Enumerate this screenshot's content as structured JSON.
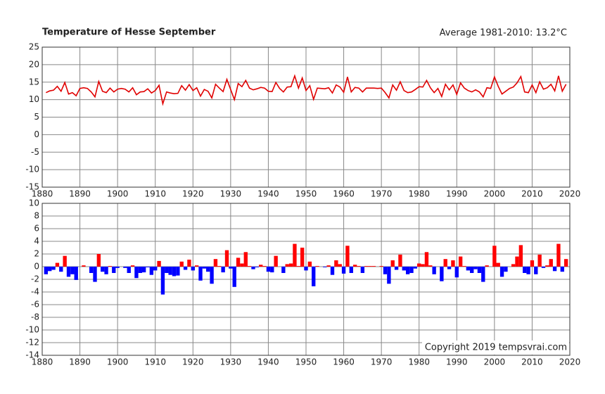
{
  "title": "Temperature of Hesse September",
  "subtitle": "Average 1981-2010: 13.2°C",
  "credit": "Copyright 2019 tempsvrai.com",
  "chart_data": [
    {
      "type": "line",
      "color": "#e00000",
      "grid": true,
      "xlim": [
        1880,
        2020
      ],
      "xticks": [
        1880,
        1890,
        1900,
        1910,
        1920,
        1930,
        1940,
        1950,
        1960,
        1970,
        1980,
        1990,
        2000,
        2010,
        2020
      ],
      "ylim": [
        -15,
        25
      ],
      "yticks": [
        -15,
        -10,
        -5,
        0,
        5,
        10,
        15,
        20,
        25
      ],
      "x": [
        1881,
        1882,
        1883,
        1884,
        1885,
        1886,
        1887,
        1888,
        1889,
        1890,
        1891,
        1892,
        1893,
        1894,
        1895,
        1896,
        1897,
        1898,
        1899,
        1900,
        1901,
        1902,
        1903,
        1904,
        1905,
        1906,
        1907,
        1908,
        1909,
        1910,
        1911,
        1912,
        1913,
        1914,
        1915,
        1916,
        1917,
        1918,
        1919,
        1920,
        1921,
        1922,
        1923,
        1924,
        1925,
        1926,
        1927,
        1928,
        1929,
        1930,
        1931,
        1932,
        1933,
        1934,
        1935,
        1936,
        1937,
        1938,
        1939,
        1940,
        1941,
        1942,
        1943,
        1944,
        1945,
        1946,
        1947,
        1948,
        1949,
        1950,
        1951,
        1952,
        1953,
        1954,
        1955,
        1956,
        1957,
        1958,
        1959,
        1960,
        1961,
        1962,
        1963,
        1964,
        1965,
        1966,
        1967,
        1968,
        1969,
        1970,
        1971,
        1972,
        1973,
        1974,
        1975,
        1976,
        1977,
        1978,
        1979,
        1980,
        1981,
        1982,
        1983,
        1984,
        1985,
        1986,
        1987,
        1988,
        1989,
        1990,
        1991,
        1992,
        1993,
        1994,
        1995,
        1996,
        1997,
        1998,
        1999,
        2000,
        2001,
        2002,
        2003,
        2004,
        2005,
        2006,
        2007,
        2008,
        2009,
        2010,
        2011,
        2012,
        2013,
        2014,
        2015,
        2016,
        2017,
        2018,
        2019
      ],
      "values": [
        12.0,
        12.5,
        12.7,
        13.8,
        12.4,
        14.9,
        11.6,
        12.0,
        11.1,
        13.2,
        13.4,
        13.2,
        12.2,
        10.8,
        15.2,
        12.4,
        12.0,
        13.3,
        12.2,
        13.0,
        13.2,
        13.0,
        12.2,
        13.4,
        11.4,
        12.2,
        12.3,
        13.1,
        11.9,
        12.6,
        14.1,
        8.8,
        12.2,
        11.9,
        11.7,
        11.8,
        14.0,
        12.7,
        14.3,
        12.6,
        13.4,
        11.0,
        12.9,
        12.4,
        10.5,
        14.4,
        13.3,
        12.3,
        15.8,
        12.9,
        10.0,
        14.6,
        13.7,
        15.5,
        13.3,
        12.8,
        13.1,
        13.5,
        13.3,
        12.4,
        12.3,
        14.9,
        13.2,
        12.2,
        13.6,
        13.7,
        16.8,
        13.3,
        16.2,
        12.6,
        14.0,
        10.1,
        13.3,
        13.2,
        13.1,
        13.4,
        11.9,
        14.2,
        13.6,
        12.1,
        16.5,
        12.2,
        13.5,
        13.3,
        12.2,
        13.3,
        13.3,
        13.3,
        13.2,
        13.3,
        12.0,
        10.5,
        14.2,
        12.7,
        15.1,
        12.6,
        12.0,
        12.2,
        12.9,
        13.7,
        13.6,
        15.5,
        13.4,
        12.0,
        13.2,
        10.9,
        14.4,
        12.8,
        14.2,
        11.5,
        14.8,
        13.3,
        12.6,
        12.2,
        12.8,
        12.2,
        10.8,
        13.4,
        13.2,
        16.5,
        13.8,
        11.6,
        12.4,
        13.2,
        13.6,
        14.8,
        16.6,
        12.2,
        12.0,
        14.2,
        12.0,
        15.1,
        13.0,
        13.4,
        14.4,
        12.5,
        16.8,
        12.4,
        14.4
      ]
    },
    {
      "type": "bar",
      "positive_color": "#ff0000",
      "negative_color": "#0000ff",
      "grid": true,
      "xlim": [
        1880,
        2020
      ],
      "xticks": [
        1880,
        1890,
        1900,
        1910,
        1920,
        1930,
        1940,
        1950,
        1960,
        1970,
        1980,
        1990,
        2000,
        2010,
        2020
      ],
      "ylim": [
        -14,
        10
      ],
      "yticks": [
        -14,
        -12,
        -10,
        -8,
        -6,
        -4,
        -2,
        0,
        2,
        4,
        6,
        8,
        10
      ],
      "x": [
        1881,
        1882,
        1883,
        1884,
        1885,
        1886,
        1887,
        1888,
        1889,
        1890,
        1891,
        1892,
        1893,
        1894,
        1895,
        1896,
        1897,
        1898,
        1899,
        1900,
        1901,
        1902,
        1903,
        1904,
        1905,
        1906,
        1907,
        1908,
        1909,
        1910,
        1911,
        1912,
        1913,
        1914,
        1915,
        1916,
        1917,
        1918,
        1919,
        1920,
        1921,
        1922,
        1923,
        1924,
        1925,
        1926,
        1927,
        1928,
        1929,
        1930,
        1931,
        1932,
        1933,
        1934,
        1935,
        1936,
        1937,
        1938,
        1939,
        1940,
        1941,
        1942,
        1943,
        1944,
        1945,
        1946,
        1947,
        1948,
        1949,
        1950,
        1951,
        1952,
        1953,
        1954,
        1955,
        1956,
        1957,
        1958,
        1959,
        1960,
        1961,
        1962,
        1963,
        1964,
        1965,
        1966,
        1967,
        1968,
        1969,
        1970,
        1971,
        1972,
        1973,
        1974,
        1975,
        1976,
        1977,
        1978,
        1979,
        1980,
        1981,
        1982,
        1983,
        1984,
        1985,
        1986,
        1987,
        1988,
        1989,
        1990,
        1991,
        1992,
        1993,
        1994,
        1995,
        1996,
        1997,
        1998,
        1999,
        2000,
        2001,
        2002,
        2003,
        2004,
        2005,
        2006,
        2007,
        2008,
        2009,
        2010,
        2011,
        2012,
        2013,
        2014,
        2015,
        2016,
        2017,
        2018,
        2019
      ],
      "values": [
        -1.2,
        -0.7,
        -0.5,
        0.6,
        -0.8,
        1.7,
        -1.6,
        -1.2,
        -2.1,
        0.0,
        0.2,
        0.0,
        -1.0,
        -2.4,
        2.0,
        -0.8,
        -1.2,
        0.1,
        -1.0,
        -0.2,
        0.0,
        -0.2,
        -1.0,
        0.2,
        -1.8,
        -1.0,
        -0.9,
        -0.1,
        -1.3,
        -0.6,
        0.9,
        -4.4,
        -1.0,
        -1.3,
        -1.5,
        -1.4,
        0.8,
        -0.5,
        1.1,
        -0.6,
        0.2,
        -2.2,
        -0.3,
        -0.8,
        -2.7,
        1.2,
        0.1,
        -0.9,
        2.6,
        -0.3,
        -3.2,
        1.4,
        0.5,
        2.3,
        0.1,
        -0.4,
        -0.1,
        0.3,
        0.1,
        -0.8,
        -0.9,
        1.7,
        0.0,
        -1.0,
        0.4,
        0.5,
        3.6,
        0.1,
        3.0,
        -0.6,
        0.8,
        -3.1,
        0.1,
        0.0,
        -0.1,
        0.2,
        -1.3,
        1.0,
        0.4,
        -1.1,
        3.3,
        -1.0,
        0.3,
        0.1,
        -1.0,
        0.1,
        0.1,
        0.1,
        0.0,
        0.1,
        -1.2,
        -2.7,
        1.0,
        -0.5,
        1.9,
        -0.6,
        -1.2,
        -1.0,
        -0.3,
        0.5,
        0.4,
        2.3,
        0.2,
        -1.2,
        0.0,
        -2.3,
        1.2,
        -0.4,
        1.0,
        -1.7,
        1.6,
        0.1,
        -0.6,
        -1.0,
        -0.4,
        -1.0,
        -2.4,
        0.2,
        0.0,
        3.3,
        0.6,
        -1.6,
        -0.8,
        0.0,
        0.4,
        1.6,
        3.4,
        -1.0,
        -1.2,
        1.0,
        -1.2,
        1.9,
        -0.2,
        0.2,
        1.2,
        -0.7,
        3.6,
        -0.8,
        1.2
      ]
    }
  ]
}
